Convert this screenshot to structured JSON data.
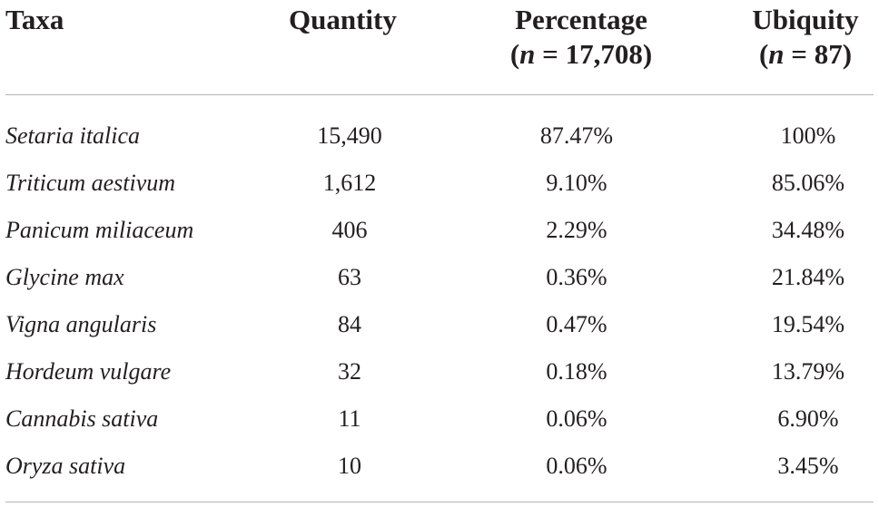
{
  "table": {
    "headers": {
      "taxa": "Taxa",
      "quantity": "Quantity",
      "percentage": "Percentage",
      "percentage_n_open": "(",
      "percentage_n_var": "n",
      "percentage_n_value": " = 17,708)",
      "ubiquity": "Ubiquity",
      "ubiquity_n_open": "(",
      "ubiquity_n_var": "n",
      "ubiquity_n_value": " = 87)"
    },
    "rows": [
      {
        "taxa": "Setaria italica",
        "quantity": "15,490",
        "percentage": "87.47%",
        "ubiquity": "100%"
      },
      {
        "taxa": "Triticum aestivum",
        "quantity": "1,612",
        "percentage": "9.10%",
        "ubiquity": "85.06%"
      },
      {
        "taxa": "Panicum miliaceum",
        "quantity": "406",
        "percentage": "2.29%",
        "ubiquity": "34.48%"
      },
      {
        "taxa": "Glycine max",
        "quantity": "63",
        "percentage": "0.36%",
        "ubiquity": "21.84%"
      },
      {
        "taxa": "Vigna angularis",
        "quantity": "84",
        "percentage": "0.47%",
        "ubiquity": "19.54%"
      },
      {
        "taxa": "Hordeum vulgare",
        "quantity": "32",
        "percentage": "0.18%",
        "ubiquity": "13.79%"
      },
      {
        "taxa": "Cannabis sativa",
        "quantity": "11",
        "percentage": "0.06%",
        "ubiquity": "6.90%"
      },
      {
        "taxa": "Oryza sativa",
        "quantity": "10",
        "percentage": "0.06%",
        "ubiquity": "3.45%"
      }
    ]
  }
}
